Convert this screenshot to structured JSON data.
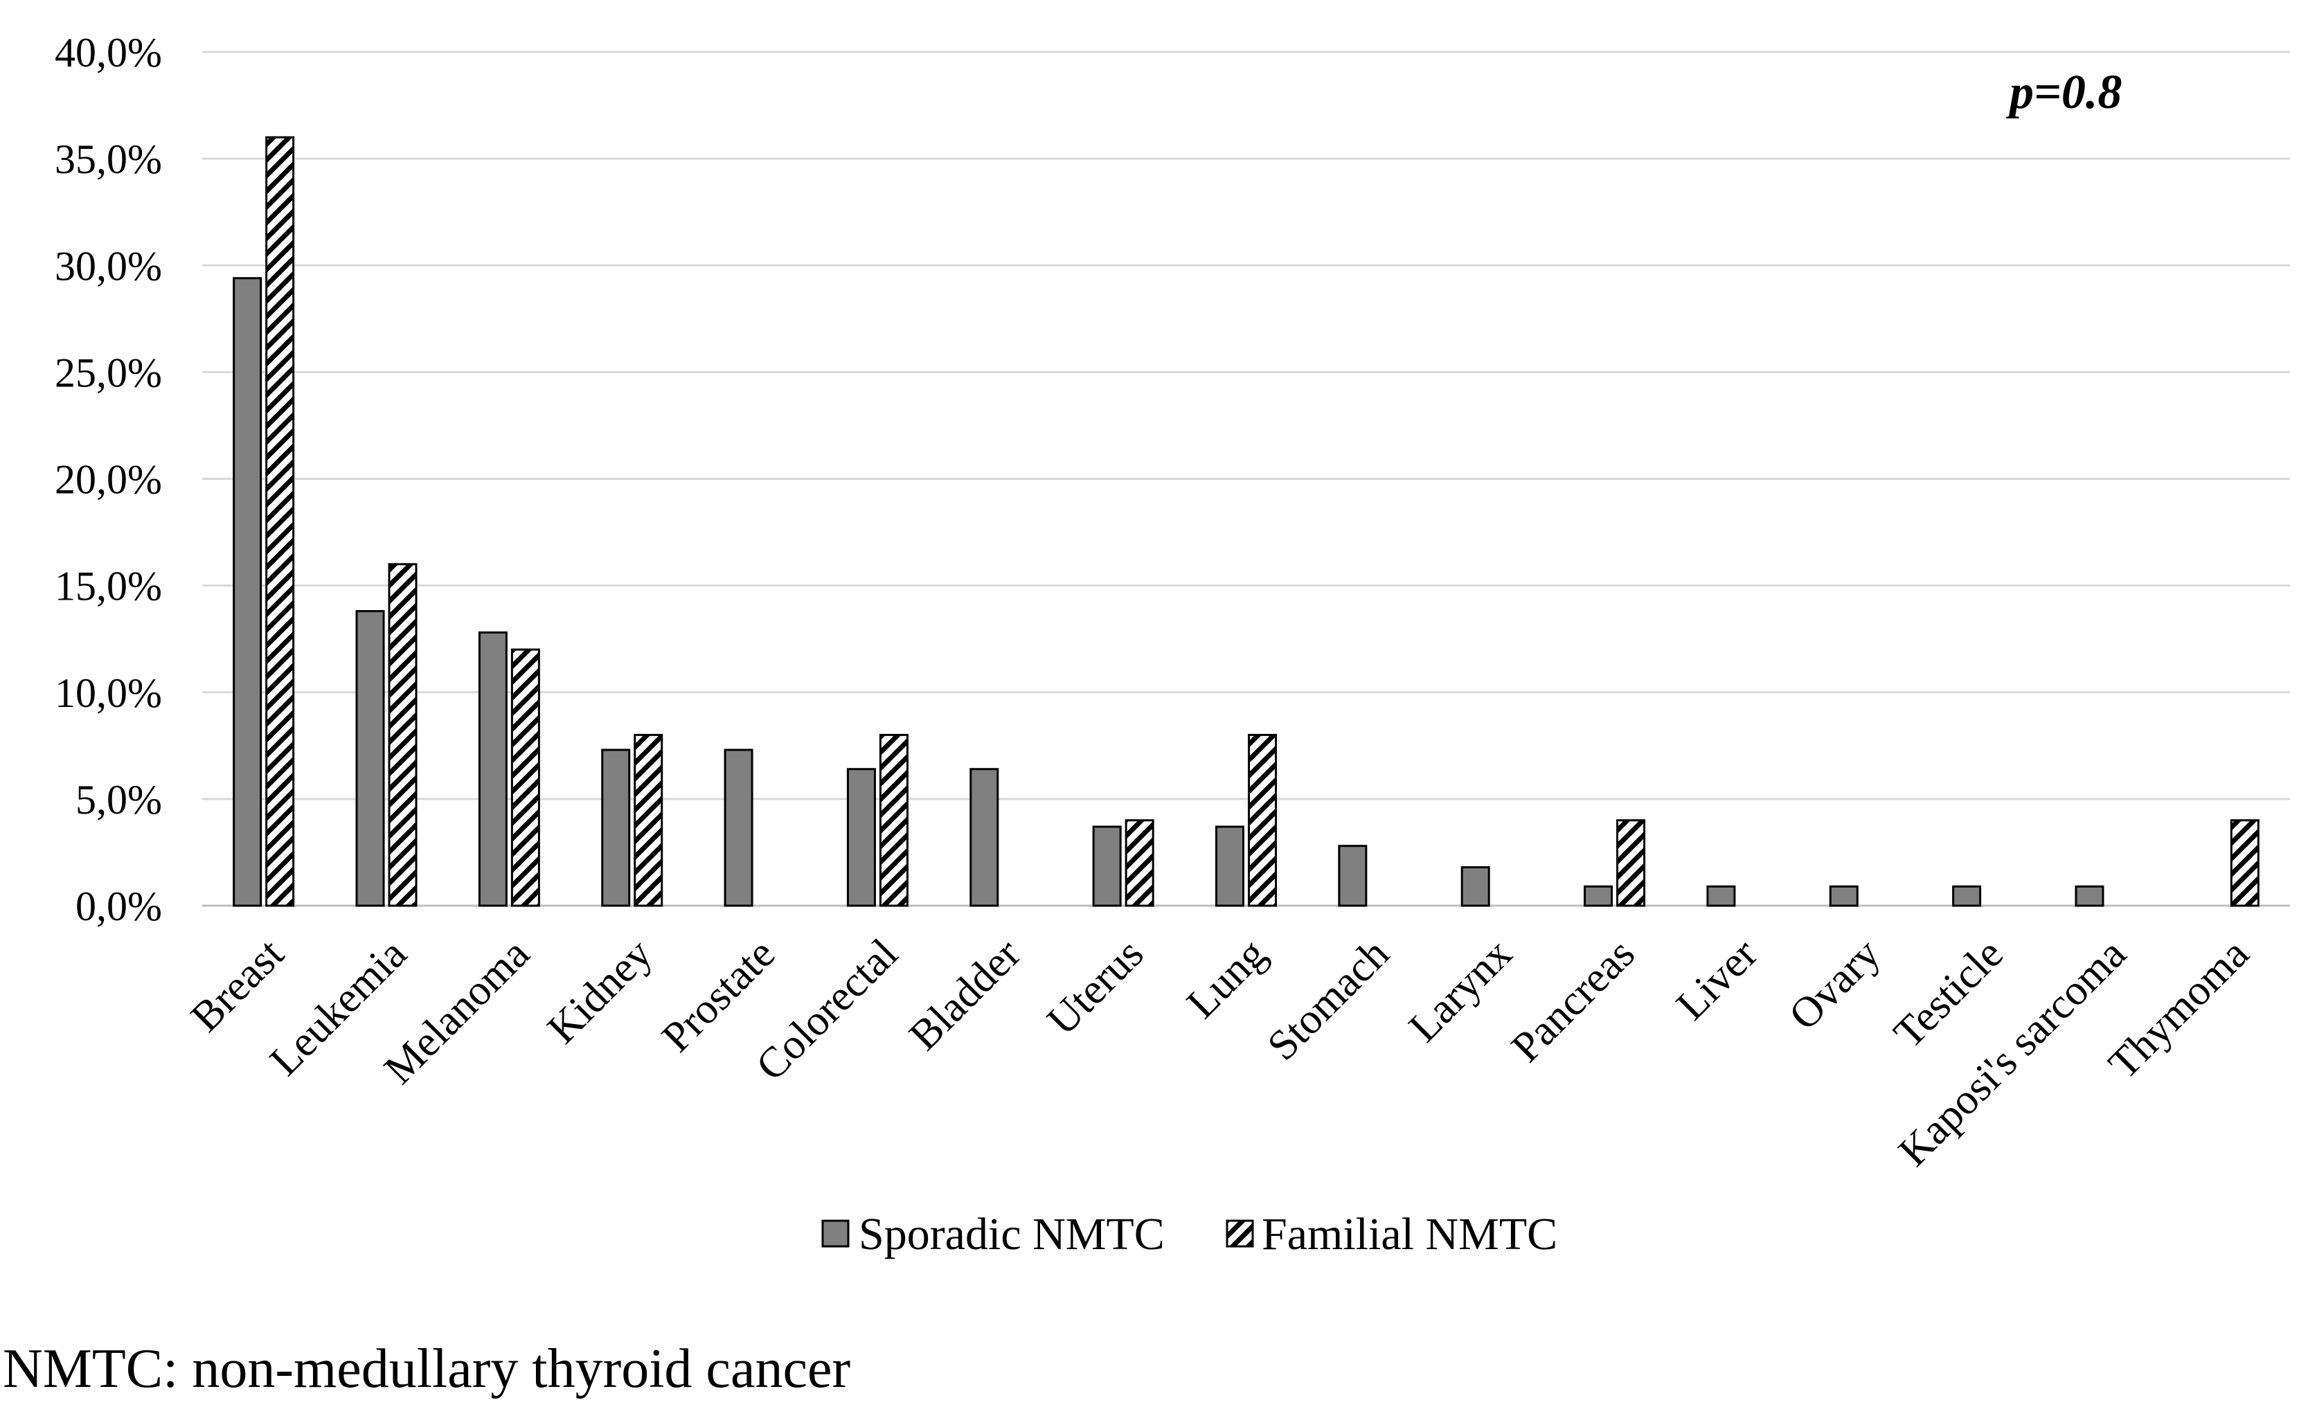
{
  "chart_data": {
    "type": "bar",
    "categories": [
      "Breast",
      "Leukemia",
      "Melanoma",
      "Kidney",
      "Prostate",
      "Colorectal",
      "Bladder",
      "Uterus",
      "Lung",
      "Stomach",
      "Larynx",
      "Pancreas",
      "Liver",
      "Ovary",
      "Testicle",
      "Kaposi's sarcoma",
      "Thymoma"
    ],
    "series": [
      {
        "name": "Sporadic NMTC",
        "values": [
          29.4,
          13.8,
          12.8,
          7.3,
          7.3,
          6.4,
          6.4,
          3.7,
          3.7,
          2.8,
          1.8,
          0.9,
          0.9,
          0.9,
          0.9,
          0.9,
          0.0
        ]
      },
      {
        "name": "Familial NMTC",
        "values": [
          36.0,
          16.0,
          12.0,
          8.0,
          0.0,
          8.0,
          0.0,
          4.0,
          8.0,
          0.0,
          0.0,
          4.0,
          0.0,
          0.0,
          0.0,
          0.0,
          4.0
        ]
      }
    ],
    "ylim": [
      0,
      40
    ],
    "ytick_values": [
      0,
      5,
      10,
      15,
      20,
      25,
      30,
      35,
      40
    ],
    "ytick_labels": [
      "0,0%",
      "5,0%",
      "10,0%",
      "15,0%",
      "20,0%",
      "25,0%",
      "30,0%",
      "35,0%",
      "40,0%"
    ],
    "annotation": "p=0.8",
    "footnote": "NMTC: non-medullary thyroid cancer",
    "grid": true
  },
  "colors": {
    "sporadic_fill": "#808080",
    "familial_fill": "#ffffff",
    "familial_hatch": "#000000",
    "bar_outline": "#000000",
    "gridline": "#d9d9d9",
    "baseline": "#bfbfbf"
  }
}
